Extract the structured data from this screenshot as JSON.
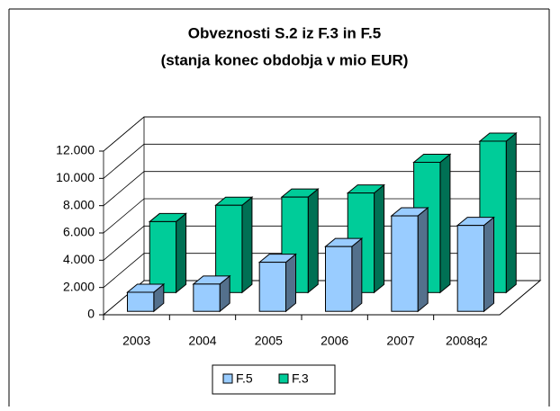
{
  "chart_data": {
    "type": "bar3d",
    "title": "Obveznosti S.2 iz F.3 in F.5",
    "subtitle": "(stanja konec obdobja v mio EUR)",
    "categories": [
      "2003",
      "2004",
      "2005",
      "2006",
      "2007",
      "2008q2"
    ],
    "series": [
      {
        "name": "F.5",
        "color": "#99ccff",
        "values": [
          1400,
          2000,
          3600,
          4750,
          7000,
          6300
        ]
      },
      {
        "name": "F.3",
        "color": "#00cc99",
        "values": [
          5200,
          6400,
          7000,
          7300,
          9550,
          11100
        ]
      }
    ],
    "ylim": [
      0,
      12000
    ],
    "yticks": [
      0,
      {
        "value": 2000,
        "label": "2.000"
      },
      {
        "value": 4000,
        "label": "4.000"
      },
      {
        "value": 6000,
        "label": "6.000"
      },
      {
        "value": 8000,
        "label": "8.000"
      },
      {
        "value": 10000,
        "label": "10.000"
      },
      {
        "value": 12000,
        "label": "12.000"
      }
    ],
    "grid": true,
    "legend": "bottom"
  }
}
